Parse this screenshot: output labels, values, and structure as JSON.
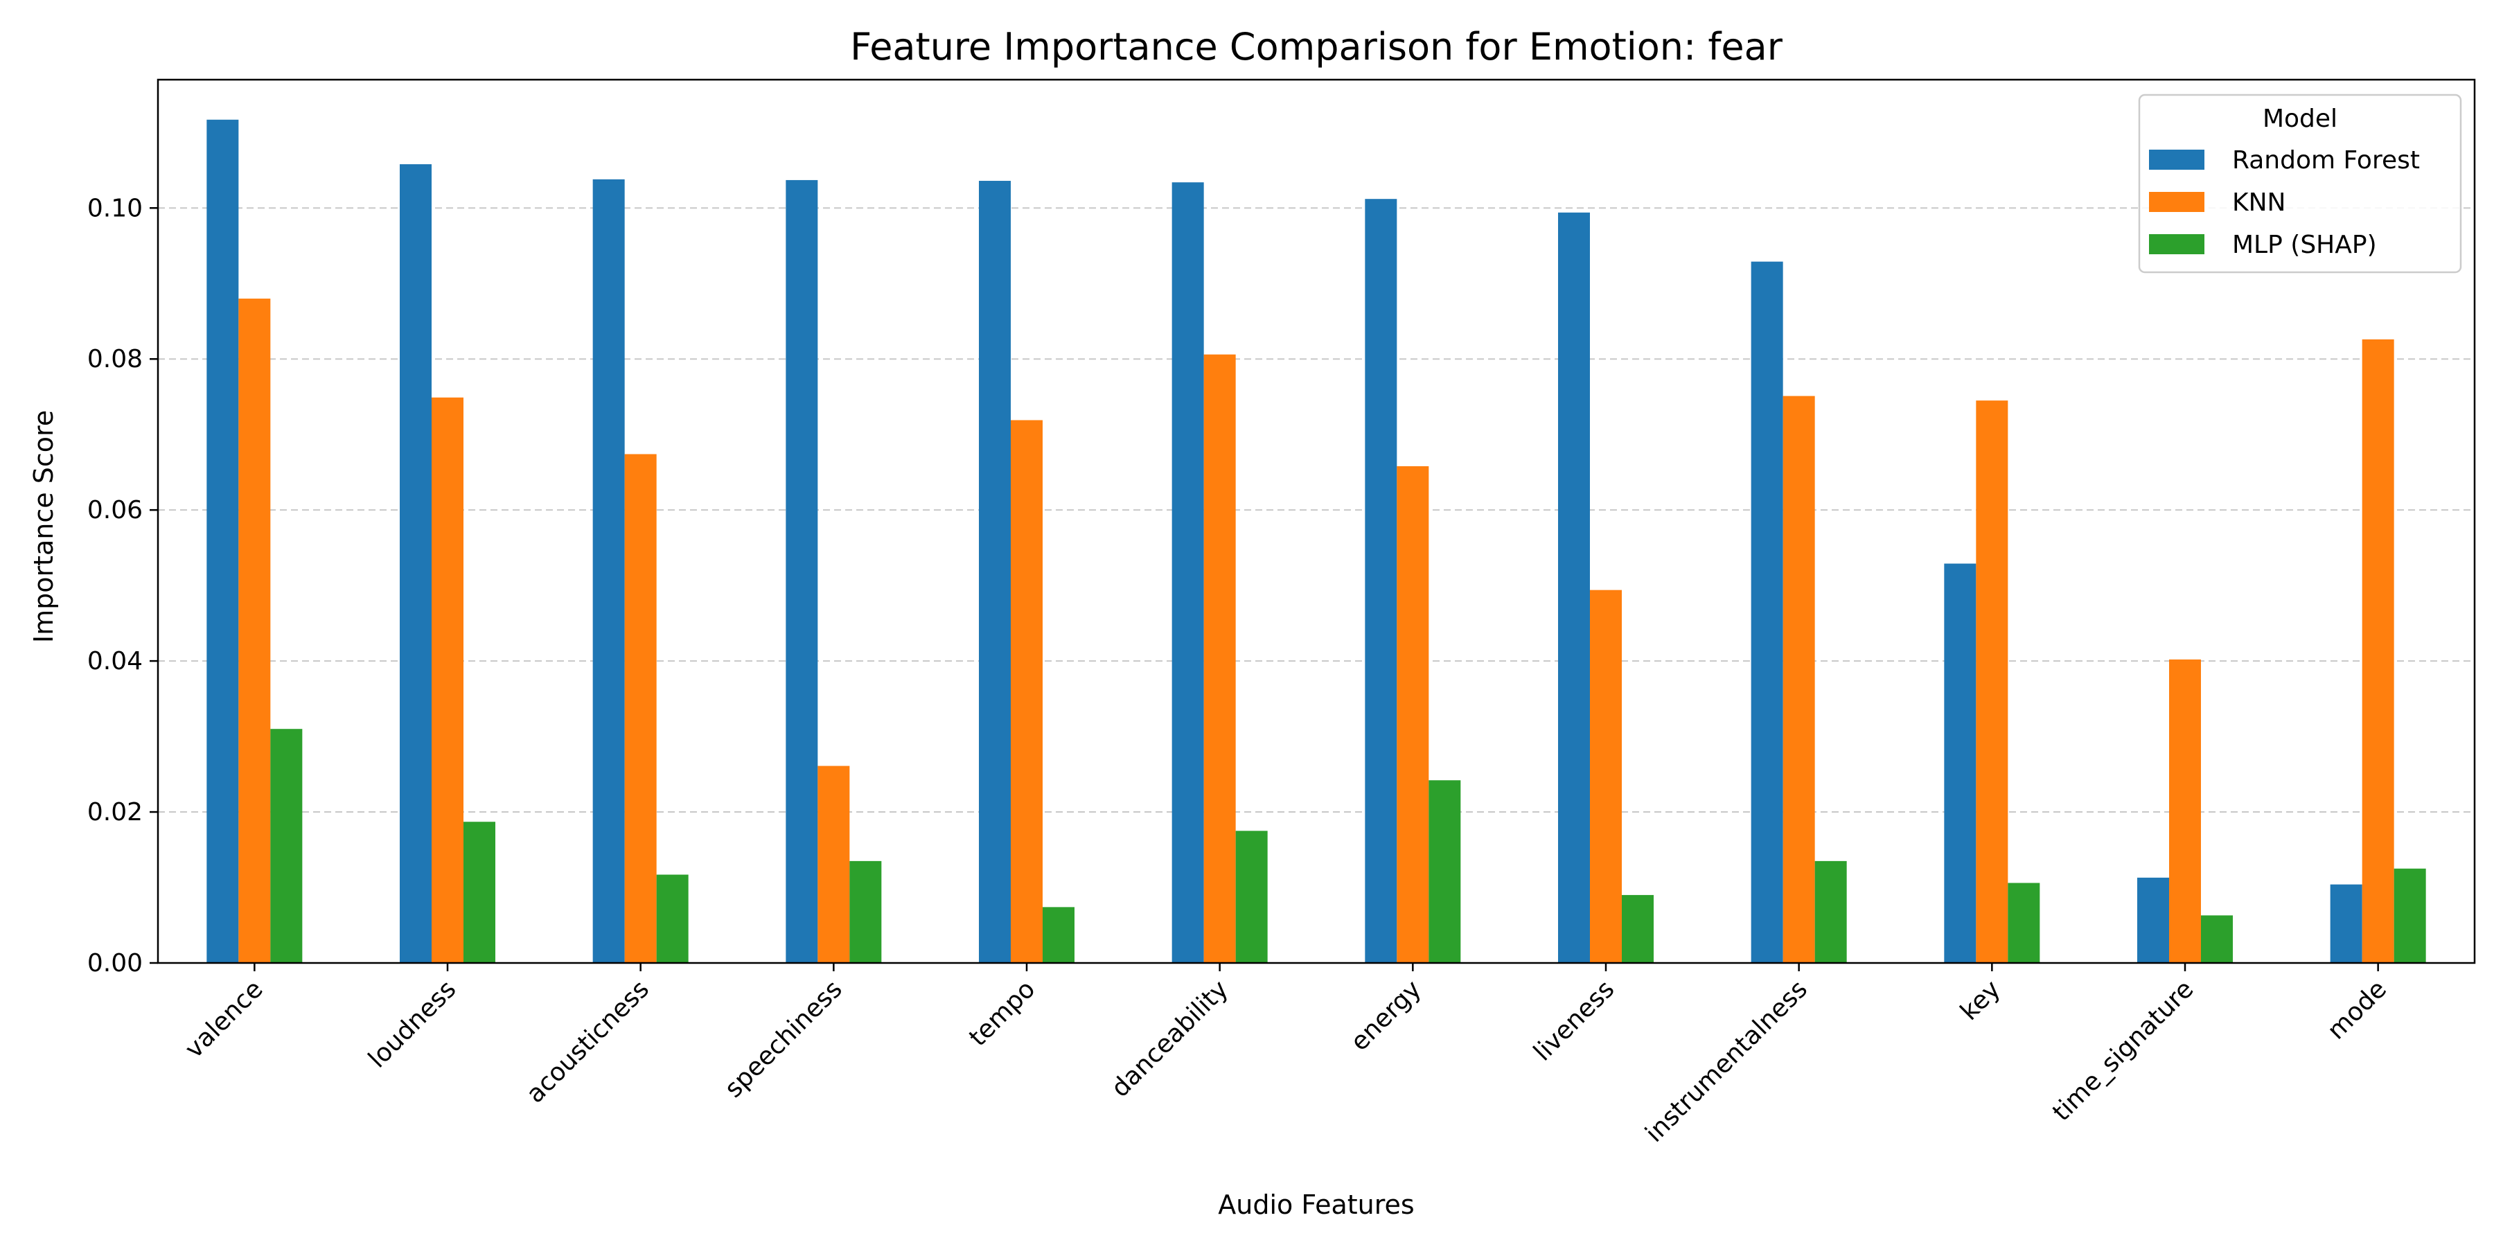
{
  "chart_data": {
    "type": "bar",
    "title": "Feature Importance Comparison for Emotion: fear",
    "xlabel": "Audio Features",
    "ylabel": "Importance Score",
    "categories": [
      "valence",
      "loudness",
      "acousticness",
      "speechiness",
      "tempo",
      "danceability",
      "energy",
      "liveness",
      "instrumentalness",
      "key",
      "time_signature",
      "mode"
    ],
    "series": [
      {
        "name": "Random Forest",
        "color": "#1f77b4",
        "values": [
          0.1117,
          0.1058,
          0.1038,
          0.1037,
          0.1036,
          0.1034,
          0.1012,
          0.0994,
          0.0929,
          0.0529,
          0.0113,
          0.0104
        ]
      },
      {
        "name": "KNN",
        "color": "#ff7f0e",
        "values": [
          0.088,
          0.0749,
          0.0674,
          0.0261,
          0.0719,
          0.0806,
          0.0658,
          0.0494,
          0.0751,
          0.0745,
          0.0402,
          0.0826
        ]
      },
      {
        "name": "MLP (SHAP)",
        "color": "#2ca02c",
        "values": [
          0.031,
          0.0187,
          0.0117,
          0.0135,
          0.0074,
          0.0175,
          0.0242,
          0.009,
          0.0135,
          0.0106,
          0.0063,
          0.0125
        ]
      }
    ],
    "ylim": [
      0,
      0.117
    ],
    "yticks": [
      "0.00",
      "0.02",
      "0.04",
      "0.06",
      "0.08",
      "0.10"
    ],
    "ytick_values": [
      0,
      0.02,
      0.04,
      0.06,
      0.08,
      0.1
    ],
    "grid": "y, dashed",
    "legend": {
      "title": "Model",
      "placement": "top-right"
    }
  }
}
